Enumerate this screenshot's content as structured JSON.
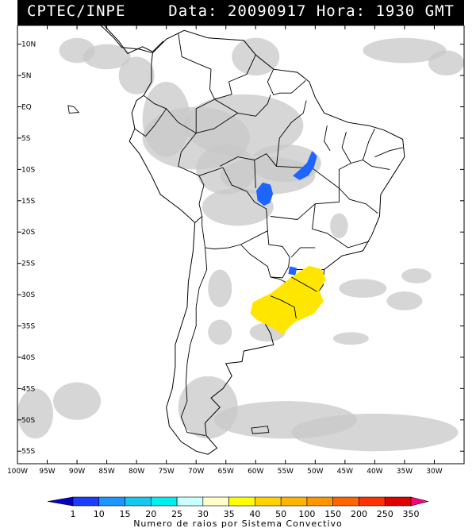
{
  "header": {
    "org": "CPTEC/INPE",
    "stamp": "Data: 20090917 Hora: 1930 GMT"
  },
  "map": {
    "lon_min": -100,
    "lon_max": -25,
    "lat_min": -57,
    "lat_max": 13,
    "lat_labels": [
      {
        "lat": 10,
        "text": "10N"
      },
      {
        "lat": 5,
        "text": "5N"
      },
      {
        "lat": 0,
        "text": "EQ"
      },
      {
        "lat": -5,
        "text": "5S"
      },
      {
        "lat": -10,
        "text": "10S"
      },
      {
        "lat": -15,
        "text": "15S"
      },
      {
        "lat": -20,
        "text": "20S"
      },
      {
        "lat": -25,
        "text": "25S"
      },
      {
        "lat": -30,
        "text": "30S"
      },
      {
        "lat": -35,
        "text": "35S"
      },
      {
        "lat": -40,
        "text": "40S"
      },
      {
        "lat": -45,
        "text": "45S"
      },
      {
        "lat": -50,
        "text": "50S"
      },
      {
        "lat": -55,
        "text": "55S"
      }
    ],
    "lon_labels": [
      {
        "lon": -100,
        "text": "100W"
      },
      {
        "lon": -95,
        "text": "95W"
      },
      {
        "lon": -90,
        "text": "90W"
      },
      {
        "lon": -85,
        "text": "85W"
      },
      {
        "lon": -80,
        "text": "80W"
      },
      {
        "lon": -75,
        "text": "75W"
      },
      {
        "lon": -70,
        "text": "70W"
      },
      {
        "lon": -65,
        "text": "65W"
      },
      {
        "lon": -60,
        "text": "60W"
      },
      {
        "lon": -55,
        "text": "55W"
      },
      {
        "lon": -50,
        "text": "50W"
      },
      {
        "lon": -45,
        "text": "45W"
      },
      {
        "lon": -40,
        "text": "40W"
      },
      {
        "lon": -35,
        "text": "35W"
      },
      {
        "lon": -30,
        "text": "30W"
      }
    ],
    "colors": {
      "cloud": "#c8c8c8",
      "land_line": "#000000"
    },
    "cells": [
      {
        "name": "storm-cell-brazil-north",
        "color": "#1e64ff",
        "points": [
          [
            -50.5,
            -7.2
          ],
          [
            -49.8,
            -7.9
          ],
          [
            -50.3,
            -9.6
          ],
          [
            -51.2,
            -10.9
          ],
          [
            -52.6,
            -11.6
          ],
          [
            -53.6,
            -11.0
          ],
          [
            -52.4,
            -10.0
          ],
          [
            -51.3,
            -9.0
          ]
        ]
      },
      {
        "name": "storm-cell-mato-grosso",
        "color": "#1e64ff",
        "points": [
          [
            -58.8,
            -12.2
          ],
          [
            -57.6,
            -12.5
          ],
          [
            -57.2,
            -13.9
          ],
          [
            -57.7,
            -15.3
          ],
          [
            -58.6,
            -15.7
          ],
          [
            -59.6,
            -14.9
          ],
          [
            -59.8,
            -13.4
          ]
        ]
      },
      {
        "name": "storm-cell-parana",
        "color": "#1e64ff",
        "points": [
          [
            -54.2,
            -25.6
          ],
          [
            -53.2,
            -25.8
          ],
          [
            -53.4,
            -26.8
          ],
          [
            -54.4,
            -26.6
          ]
        ]
      },
      {
        "name": "storm-system-southern-brazil-uruguay",
        "color": "#ffe600",
        "points": [
          [
            -51.0,
            -25.5
          ],
          [
            -49.0,
            -26.0
          ],
          [
            -48.3,
            -27.6
          ],
          [
            -49.5,
            -29.2
          ],
          [
            -48.7,
            -31.0
          ],
          [
            -50.3,
            -33.0
          ],
          [
            -51.8,
            -33.6
          ],
          [
            -53.3,
            -34.2
          ],
          [
            -54.5,
            -35.2
          ],
          [
            -55.5,
            -36.3
          ],
          [
            -56.5,
            -35.6
          ],
          [
            -58.0,
            -34.8
          ],
          [
            -59.7,
            -34.0
          ],
          [
            -60.8,
            -33.0
          ],
          [
            -60.4,
            -31.3
          ],
          [
            -58.8,
            -30.5
          ],
          [
            -57.3,
            -29.8
          ],
          [
            -55.8,
            -28.7
          ],
          [
            -54.1,
            -27.4
          ],
          [
            -52.6,
            -26.4
          ]
        ]
      }
    ]
  },
  "colorbar": {
    "ticks": [
      "1",
      "10",
      "15",
      "20",
      "25",
      "30",
      "35",
      "40",
      "50",
      "100",
      "150",
      "200",
      "250",
      "350"
    ],
    "colors": [
      "#0000c8",
      "#1e3cff",
      "#1e96ff",
      "#14c8f0",
      "#00f0f0",
      "#c8ffff",
      "#ffffc8",
      "#ffff00",
      "#ffd200",
      "#ffb400",
      "#ff9600",
      "#ff6400",
      "#ff3200",
      "#e10000",
      "#ff0080"
    ],
    "title": "Numero de raios por Sistema Convectivo"
  }
}
